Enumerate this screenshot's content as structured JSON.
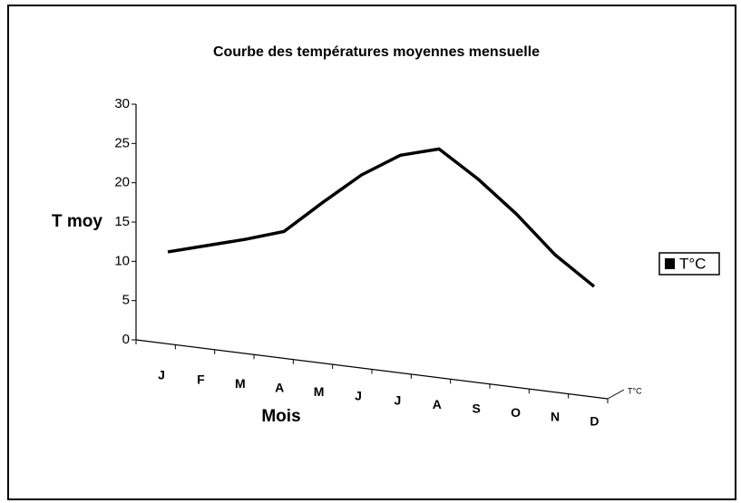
{
  "chart_data": {
    "type": "line",
    "title": "Courbe des températures moyennes mensuelle",
    "y_label": "T moy",
    "x_label": "Mois",
    "categories": [
      "J",
      "F",
      "M",
      "A",
      "M",
      "J",
      "J",
      "A",
      "S",
      "O",
      "N",
      "D"
    ],
    "series": [
      {
        "name": "T°C",
        "color": "#000000",
        "values": [
          11.2,
          12,
          12.8,
          13.8,
          17.5,
          21,
          23.5,
          24.3,
          20.5,
          16,
          10.8,
          6.8
        ]
      }
    ],
    "ylim": [
      0,
      30
    ],
    "yticks": [
      0,
      5,
      10,
      15,
      20,
      25,
      30
    ],
    "legend": "right"
  }
}
